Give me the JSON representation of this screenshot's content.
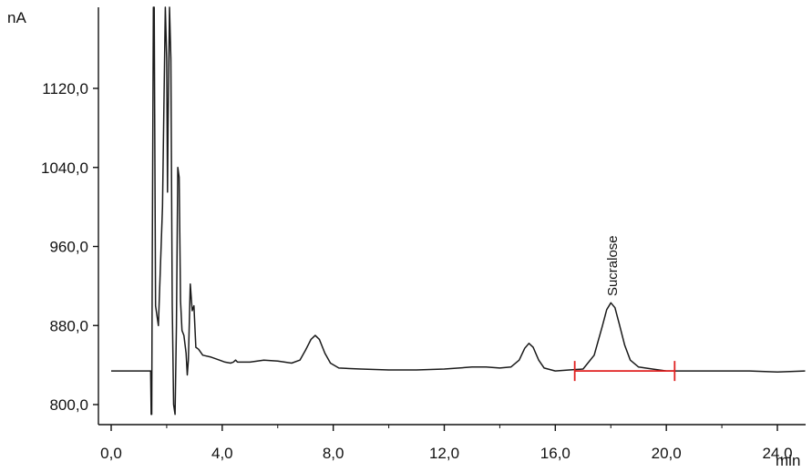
{
  "chart_data": {
    "type": "line",
    "title": "",
    "xlabel": "min",
    "ylabel": "nA",
    "xlim": [
      0,
      25
    ],
    "ylim": [
      790,
      1210
    ],
    "x_ticks": [
      0,
      4,
      8,
      12,
      16,
      20,
      24
    ],
    "x_tick_labels": [
      "0,0",
      "4,0",
      "8,0",
      "12,0",
      "16,0",
      "20,0",
      "24,0"
    ],
    "y_ticks": [
      800,
      880,
      960,
      1040,
      1120
    ],
    "y_tick_labels": [
      "800,0",
      "880,0",
      "960,0",
      "1040,0",
      "1120,0"
    ],
    "grid": false,
    "series": [
      {
        "color": "#1a1a1a",
        "points": [
          [
            0.0,
            834
          ],
          [
            1.4,
            834
          ],
          [
            1.42,
            834
          ],
          [
            1.44,
            790
          ],
          [
            1.46,
            790
          ],
          [
            1.48,
            950
          ],
          [
            1.52,
            1210
          ],
          [
            1.55,
            1210
          ],
          [
            1.6,
            900
          ],
          [
            1.7,
            880
          ],
          [
            1.85,
            1000
          ],
          [
            1.95,
            1210
          ],
          [
            2.0,
            1150
          ],
          [
            2.03,
            1015
          ],
          [
            2.05,
            1080
          ],
          [
            2.1,
            1210
          ],
          [
            2.15,
            1150
          ],
          [
            2.2,
            900
          ],
          [
            2.25,
            800
          ],
          [
            2.3,
            790
          ],
          [
            2.35,
            880
          ],
          [
            2.4,
            1040
          ],
          [
            2.45,
            1030
          ],
          [
            2.5,
            905
          ],
          [
            2.55,
            875
          ],
          [
            2.62,
            870
          ],
          [
            2.7,
            852
          ],
          [
            2.74,
            830
          ],
          [
            2.78,
            845
          ],
          [
            2.85,
            922
          ],
          [
            2.92,
            895
          ],
          [
            2.98,
            900
          ],
          [
            3.05,
            858
          ],
          [
            3.15,
            856
          ],
          [
            3.3,
            850
          ],
          [
            3.6,
            848
          ],
          [
            3.9,
            845
          ],
          [
            4.1,
            843
          ],
          [
            4.3,
            842
          ],
          [
            4.4,
            843
          ],
          [
            4.48,
            845
          ],
          [
            4.55,
            843
          ],
          [
            4.7,
            843
          ],
          [
            5.0,
            843
          ],
          [
            5.5,
            845
          ],
          [
            6.0,
            844
          ],
          [
            6.5,
            842
          ],
          [
            6.8,
            845
          ],
          [
            7.0,
            855
          ],
          [
            7.2,
            866
          ],
          [
            7.35,
            870
          ],
          [
            7.5,
            866
          ],
          [
            7.7,
            852
          ],
          [
            7.9,
            842
          ],
          [
            8.2,
            837
          ],
          [
            9.0,
            836
          ],
          [
            10.0,
            835
          ],
          [
            11.0,
            835
          ],
          [
            12.0,
            836
          ],
          [
            13.0,
            838
          ],
          [
            13.5,
            838
          ],
          [
            14.0,
            837
          ],
          [
            14.4,
            838
          ],
          [
            14.7,
            845
          ],
          [
            14.9,
            857
          ],
          [
            15.05,
            862
          ],
          [
            15.2,
            858
          ],
          [
            15.4,
            845
          ],
          [
            15.6,
            837
          ],
          [
            16.0,
            834
          ],
          [
            16.5,
            835
          ],
          [
            17.0,
            836
          ],
          [
            17.4,
            850
          ],
          [
            17.7,
            880
          ],
          [
            17.85,
            896
          ],
          [
            18.0,
            903
          ],
          [
            18.15,
            898
          ],
          [
            18.3,
            882
          ],
          [
            18.5,
            860
          ],
          [
            18.7,
            845
          ],
          [
            19.0,
            838
          ],
          [
            19.5,
            836
          ],
          [
            20.0,
            834
          ],
          [
            21.0,
            834
          ],
          [
            22.0,
            834
          ],
          [
            23.0,
            834
          ],
          [
            24.0,
            833
          ],
          [
            25.0,
            834
          ]
        ]
      }
    ],
    "annotations": [
      {
        "text": "Sucralose",
        "x": 18.05,
        "y": 906
      }
    ],
    "integration_marker": {
      "color": "#e02020",
      "x_start": 16.7,
      "x_end": 20.3,
      "y": 834
    }
  }
}
